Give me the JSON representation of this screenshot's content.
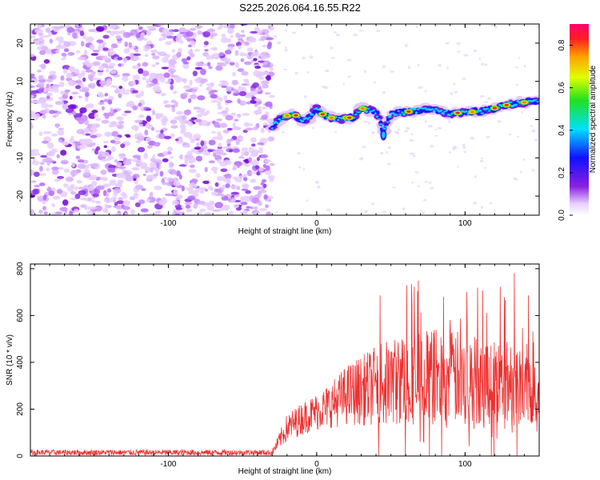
{
  "title": "S225.2026.064.16.55.R22",
  "chart_data": [
    {
      "type": "heatmap",
      "name": "spectrogram",
      "xlabel": "Height of straight line (km)",
      "ylabel": "Frequency (Hz)",
      "xlim": [
        -193,
        150
      ],
      "ylim": [
        -25,
        25
      ],
      "xticks": [
        -100,
        0,
        100
      ],
      "yticks": [
        -20,
        -10,
        0,
        10,
        20
      ],
      "colorbar": {
        "label": "Normalized spectral amplitude",
        "range": [
          0.0,
          0.9
        ],
        "ticks": [
          0.0,
          0.2,
          0.4,
          0.6,
          0.8
        ]
      },
      "noise_region_end": -30,
      "ridge": {
        "x": [
          -30,
          -25,
          -20,
          -15,
          -10,
          -5,
          0,
          5,
          10,
          15,
          20,
          25,
          30,
          35,
          40,
          45,
          50,
          60,
          70,
          80,
          90,
          100,
          110,
          120,
          130,
          140,
          150
        ],
        "y": [
          -2,
          0,
          1,
          1.5,
          -0.5,
          0.5,
          3,
          1,
          0.5,
          0,
          0.5,
          0.5,
          3,
          2.5,
          2,
          -3,
          1.5,
          2,
          2.5,
          2.5,
          1.5,
          2,
          2,
          3,
          4,
          4.5,
          5
        ]
      }
    },
    {
      "type": "line",
      "name": "snr",
      "xlabel": "Height of straight line (km)",
      "ylabel": "SNR (10 * v/v)",
      "xlim": [
        -193,
        150
      ],
      "ylim": [
        0,
        820
      ],
      "xticks": [
        -100,
        0,
        100
      ],
      "yticks": [
        0,
        200,
        400,
        600,
        800
      ],
      "color": "#ee3030",
      "series_envelope": {
        "x": [
          -193,
          -30,
          -20,
          -10,
          0,
          10,
          20,
          40,
          60,
          80,
          100,
          120,
          140,
          150
        ],
        "mean": [
          15,
          15,
          120,
          160,
          190,
          220,
          260,
          300,
          330,
          340,
          330,
          320,
          310,
          300
        ],
        "spread": [
          12,
          12,
          60,
          70,
          80,
          100,
          130,
          170,
          200,
          210,
          200,
          190,
          180,
          170
        ]
      }
    }
  ]
}
